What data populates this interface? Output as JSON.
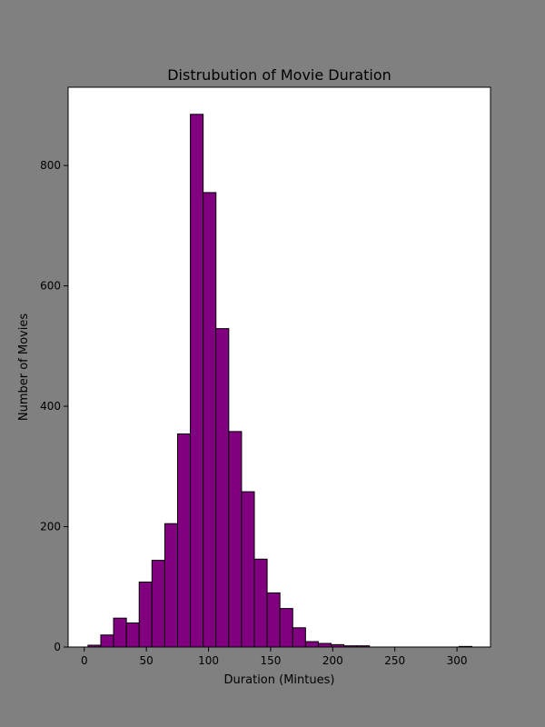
{
  "chart_data": {
    "type": "bar",
    "title": "Distrubution of Movie Duration",
    "xlabel": "Duration (Mintues)",
    "ylabel": "Number of Movies",
    "bar_color": "#800080",
    "edge_color": "#000000",
    "figure_background": "#808080",
    "plot_background": "#ffffff",
    "xlim": [
      -13,
      327
    ],
    "ylim": [
      0,
      930
    ],
    "xticks": [
      0,
      50,
      100,
      150,
      200,
      250,
      300
    ],
    "yticks": [
      0,
      200,
      400,
      600,
      800
    ],
    "bin_width": 10.3,
    "bin_edges": [
      3.0,
      13.3,
      23.6,
      33.9,
      44.2,
      54.5,
      64.8,
      75.1,
      85.4,
      95.7,
      106.0,
      116.3,
      126.6,
      136.9,
      147.2,
      157.5,
      167.8,
      178.1,
      188.4,
      198.7,
      209.0,
      219.3,
      229.6,
      239.9,
      250.2,
      260.5,
      270.8,
      281.1,
      291.4,
      301.7,
      312.0
    ],
    "values": [
      3,
      20,
      48,
      40,
      108,
      144,
      205,
      354,
      885,
      755,
      529,
      358,
      258,
      146,
      90,
      64,
      32,
      9,
      6,
      4,
      2,
      2,
      0,
      0,
      0,
      0,
      0,
      0,
      0,
      1
    ],
    "grid": false,
    "legend": false
  }
}
